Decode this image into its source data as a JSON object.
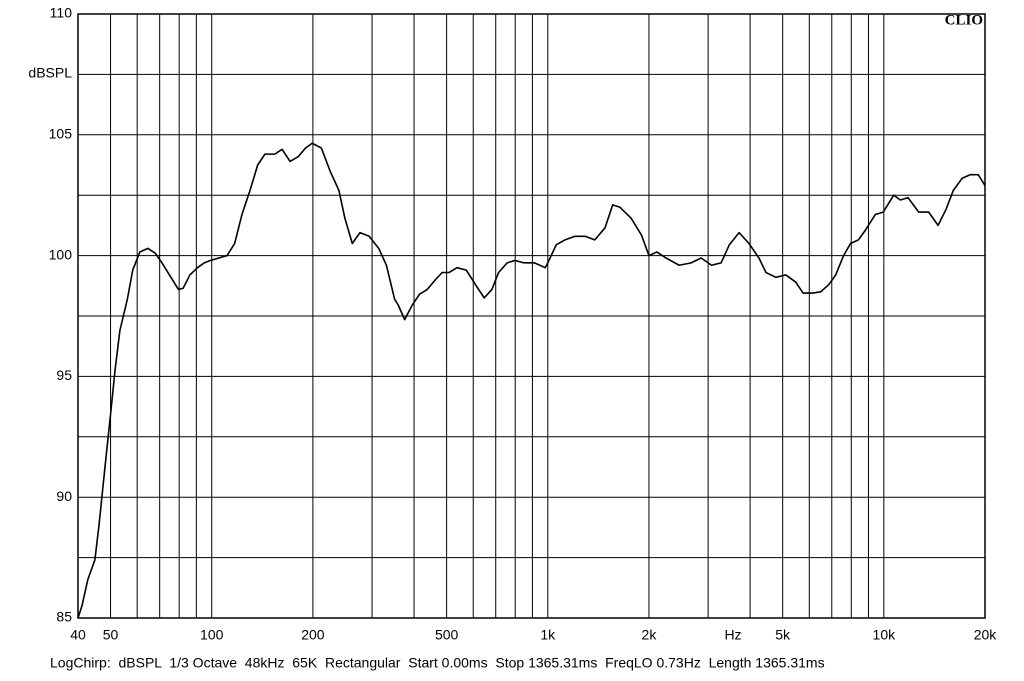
{
  "chart_data": {
    "type": "line",
    "brand": "CLIO",
    "y_label": "dBSPL",
    "x_unit": "Hz",
    "footer": "LogChirp:  dBSPL  1/3 Octave  48kHz  65K  Rectangular  Start 0.00ms  Stop 1365.31ms  FreqLO 0.73Hz  Length 1365.31ms",
    "log_x": true,
    "grid": true,
    "color": "#000000",
    "xlim": [
      40,
      20000
    ],
    "ylim": [
      85,
      110
    ],
    "xticks": [
      40,
      50,
      {
        "value": 60,
        "label": null
      },
      {
        "value": 70,
        "label": null
      },
      {
        "value": 80,
        "label": null
      },
      {
        "value": 90,
        "label": null
      },
      100,
      200,
      {
        "value": 300,
        "label": null
      },
      {
        "value": 400,
        "label": null
      },
      500,
      {
        "value": 600,
        "label": null
      },
      {
        "value": 700,
        "label": null
      },
      {
        "value": 800,
        "label": null
      },
      {
        "value": 900,
        "label": null
      },
      {
        "value": 1000,
        "label": "1k"
      },
      {
        "value": 2000,
        "label": "2k"
      },
      {
        "value": 3000,
        "label": null
      },
      {
        "value": 4000,
        "label": null
      },
      {
        "value": 5000,
        "label": "5k"
      },
      {
        "value": 6000,
        "label": null
      },
      {
        "value": 7000,
        "label": null
      },
      {
        "value": 8000,
        "label": null
      },
      {
        "value": 9000,
        "label": null
      },
      {
        "value": 10000,
        "label": "10k"
      },
      {
        "value": 20000,
        "label": "20k"
      }
    ],
    "yticks": [
      85,
      {
        "value": 87.5,
        "label": null
      },
      90,
      {
        "value": 92.5,
        "label": null
      },
      95,
      {
        "value": 97.5,
        "label": null
      },
      100,
      {
        "value": 102.5,
        "label": null
      },
      105,
      {
        "value": 107.5,
        "label": null
      },
      110
    ],
    "x": [
      40,
      41.1,
      42.8,
      44.9,
      46.2,
      48,
      49.8,
      51.6,
      53.3,
      56.1,
      58.2,
      61.1,
      64.5,
      67.9,
      71.1,
      75.6,
      79.6,
      82.2,
      86.1,
      90.7,
      95,
      99.2,
      105,
      111,
      117,
      123,
      130,
      137,
      144,
      154,
      162,
      171,
      181,
      190,
      199,
      212,
      225,
      239,
      249,
      262,
      276,
      294,
      314,
      331,
      350,
      359,
      375,
      395,
      415,
      438,
      463,
      485,
      508,
      537,
      572,
      609,
      647,
      682,
      714,
      757,
      799,
      849,
      913,
      983,
      1000,
      1060,
      1125,
      1205,
      1292,
      1380,
      1480,
      1560,
      1640,
      1770,
      1900,
      2000,
      2110,
      2250,
      2460,
      2670,
      2860,
      3070,
      3280,
      3470,
      3710,
      3970,
      4250,
      4460,
      4770,
      5110,
      5470,
      5750,
      6150,
      6490,
      6860,
      7190,
      7590,
      7960,
      8400,
      8810,
      9430,
      9960,
      10700,
      11200,
      11800,
      12700,
      13600,
      14500,
      15300,
      16100,
      17100,
      18100,
      19100,
      20000
    ],
    "values": [
      85,
      85.5,
      86.6,
      87.4,
      88.85,
      91.1,
      93.2,
      95.3,
      96.9,
      98.2,
      99.4,
      100.15,
      100.3,
      100.1,
      99.7,
      99.1,
      98.6,
      98.65,
      99.2,
      99.5,
      99.7,
      99.8,
      99.9,
      100.0,
      100.5,
      101.7,
      102.7,
      103.75,
      104.2,
      104.2,
      104.4,
      103.9,
      104.1,
      104.45,
      104.65,
      104.45,
      103.5,
      102.7,
      101.55,
      100.5,
      100.95,
      100.8,
      100.3,
      99.6,
      98.2,
      97.95,
      97.35,
      97.95,
      98.4,
      98.6,
      99.0,
      99.3,
      99.3,
      99.5,
      99.4,
      98.8,
      98.25,
      98.6,
      99.3,
      99.7,
      99.8,
      99.7,
      99.7,
      99.5,
      99.7,
      100.45,
      100.65,
      100.8,
      100.8,
      100.65,
      101.15,
      102.1,
      102.0,
      101.55,
      100.85,
      100.0,
      100.15,
      99.9,
      99.6,
      99.7,
      99.9,
      99.6,
      99.7,
      100.45,
      100.95,
      100.5,
      99.9,
      99.3,
      99.1,
      99.2,
      98.9,
      98.45,
      98.45,
      98.5,
      98.8,
      99.2,
      100.0,
      100.5,
      100.65,
      101.05,
      101.7,
      101.8,
      102.5,
      102.3,
      102.4,
      101.8,
      101.8,
      101.25,
      101.9,
      102.7,
      103.2,
      103.35,
      103.35,
      102.9
    ]
  }
}
